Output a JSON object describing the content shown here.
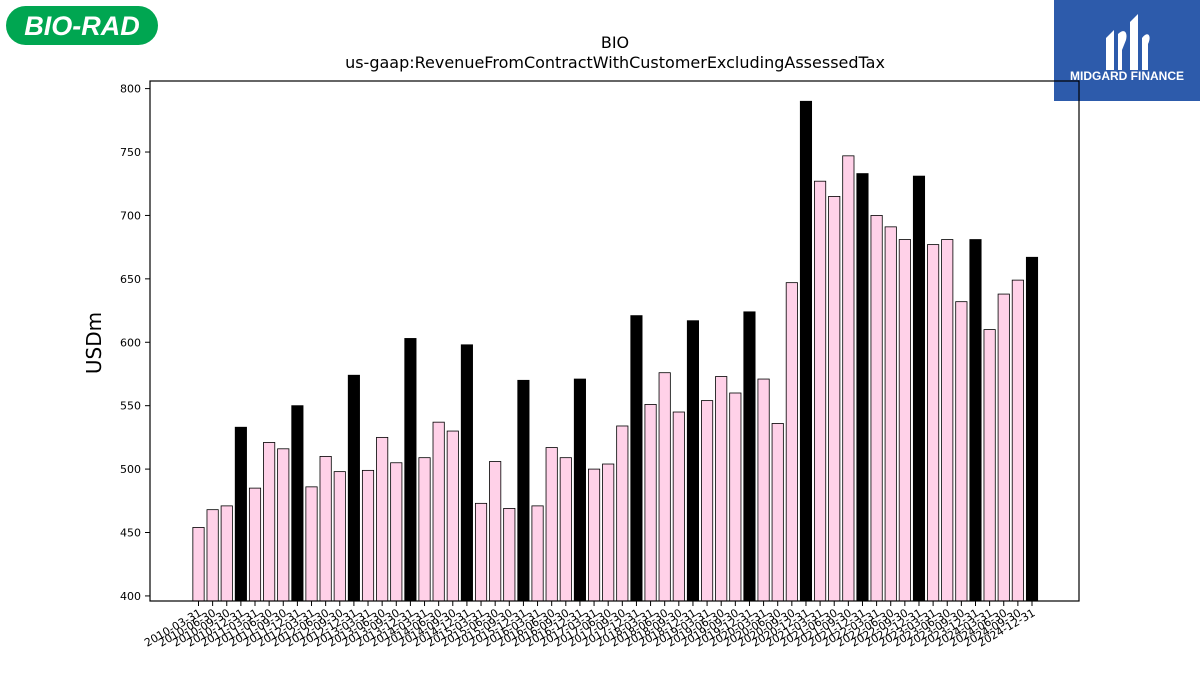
{
  "brand": {
    "left_logo_text": "BIO-RAD",
    "left_logo_color": "#00a651",
    "right_logo_text": "MIDGARD FINANCE",
    "right_logo_color": "#2d5bab"
  },
  "chart_data": {
    "type": "bar",
    "title": "BIO",
    "subtitle": "us-gaap:RevenueFromContractWithCustomerExcludingAssessedTax",
    "xlabel": "",
    "ylabel": "USDm",
    "ylim": [
      396,
      806
    ],
    "yticks": [
      400,
      450,
      500,
      550,
      600,
      650,
      700,
      750,
      800
    ],
    "grid": false,
    "colors": {
      "quarter": "#ffd1e8",
      "year_end": "#000000",
      "edge": "#000000"
    },
    "categories": [
      "2010-03-31",
      "2010-06-30",
      "2010-09-30",
      "2010-12-31",
      "2011-03-31",
      "2011-06-30",
      "2011-09-30",
      "2011-12-31",
      "2012-03-31",
      "2012-06-30",
      "2012-09-30",
      "2012-12-31",
      "2013-03-31",
      "2013-06-30",
      "2013-09-30",
      "2013-12-31",
      "2014-03-31",
      "2014-06-30",
      "2014-09-30",
      "2014-12-31",
      "2015-03-31",
      "2015-06-30",
      "2015-09-30",
      "2015-12-31",
      "2016-03-31",
      "2016-06-30",
      "2016-09-30",
      "2016-12-31",
      "2017-03-31",
      "2017-06-30",
      "2017-09-30",
      "2017-12-31",
      "2018-03-31",
      "2018-06-30",
      "2018-09-30",
      "2018-12-31",
      "2019-03-31",
      "2019-06-30",
      "2019-09-30",
      "2019-12-31",
      "2020-03-31",
      "2020-06-30",
      "2020-09-30",
      "2020-12-31",
      "2021-03-31",
      "2021-06-30",
      "2021-09-30",
      "2021-12-31",
      "2022-03-31",
      "2022-06-30",
      "2022-09-30",
      "2022-12-31",
      "2023-03-31",
      "2023-06-30",
      "2023-09-30",
      "2023-12-31",
      "2024-03-31",
      "2024-06-30",
      "2024-09-30",
      "2024-12-31"
    ],
    "values": [
      454,
      468,
      471,
      533,
      485,
      521,
      516,
      550,
      486,
      510,
      498,
      574,
      499,
      525,
      505,
      603,
      509,
      537,
      530,
      598,
      473,
      506,
      469,
      570,
      471,
      517,
      509,
      571,
      500,
      504,
      534,
      621,
      551,
      576,
      545,
      617,
      554,
      573,
      560,
      624,
      571,
      536,
      647,
      790,
      727,
      715,
      747,
      733,
      700,
      691,
      681,
      731,
      677,
      681,
      632,
      681,
      610,
      638,
      649,
      667
    ]
  }
}
